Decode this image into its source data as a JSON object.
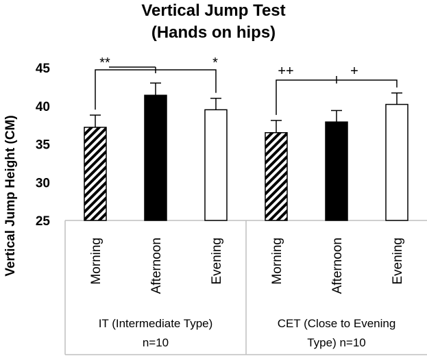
{
  "chart_data": {
    "type": "bar",
    "title": "Vertical Jump Test",
    "subtitle": "(Hands on hips)",
    "ylabel": "Vertical Jump Height (CM)",
    "xlabel": "",
    "ylim": [
      25,
      45
    ],
    "yticks": [
      25,
      30,
      35,
      40,
      45
    ],
    "grid": false,
    "groups": [
      {
        "label_line1": "IT (Intermediate Type)",
        "label_line2": "n=10",
        "bars": [
          {
            "category": "Morning",
            "value": 37.2,
            "error": 1.6,
            "fill": "hatched"
          },
          {
            "category": "Afternoon",
            "value": 41.4,
            "error": 1.6,
            "fill": "solid"
          },
          {
            "category": "Evening",
            "value": 39.5,
            "error": 1.5,
            "fill": "open"
          }
        ],
        "annotations": {
          "left": "**",
          "right": "*"
        }
      },
      {
        "label_line1": "CET (Close to Evening",
        "label_line2": "Type) n=10",
        "bars": [
          {
            "category": "Morning",
            "value": 36.5,
            "error": 1.6,
            "fill": "hatched"
          },
          {
            "category": "Afternoon",
            "value": 37.9,
            "error": 1.5,
            "fill": "solid"
          },
          {
            "category": "Evening",
            "value": 40.2,
            "error": 1.5,
            "fill": "open"
          }
        ],
        "annotations": {
          "left": "++",
          "right": "+"
        }
      }
    ]
  }
}
